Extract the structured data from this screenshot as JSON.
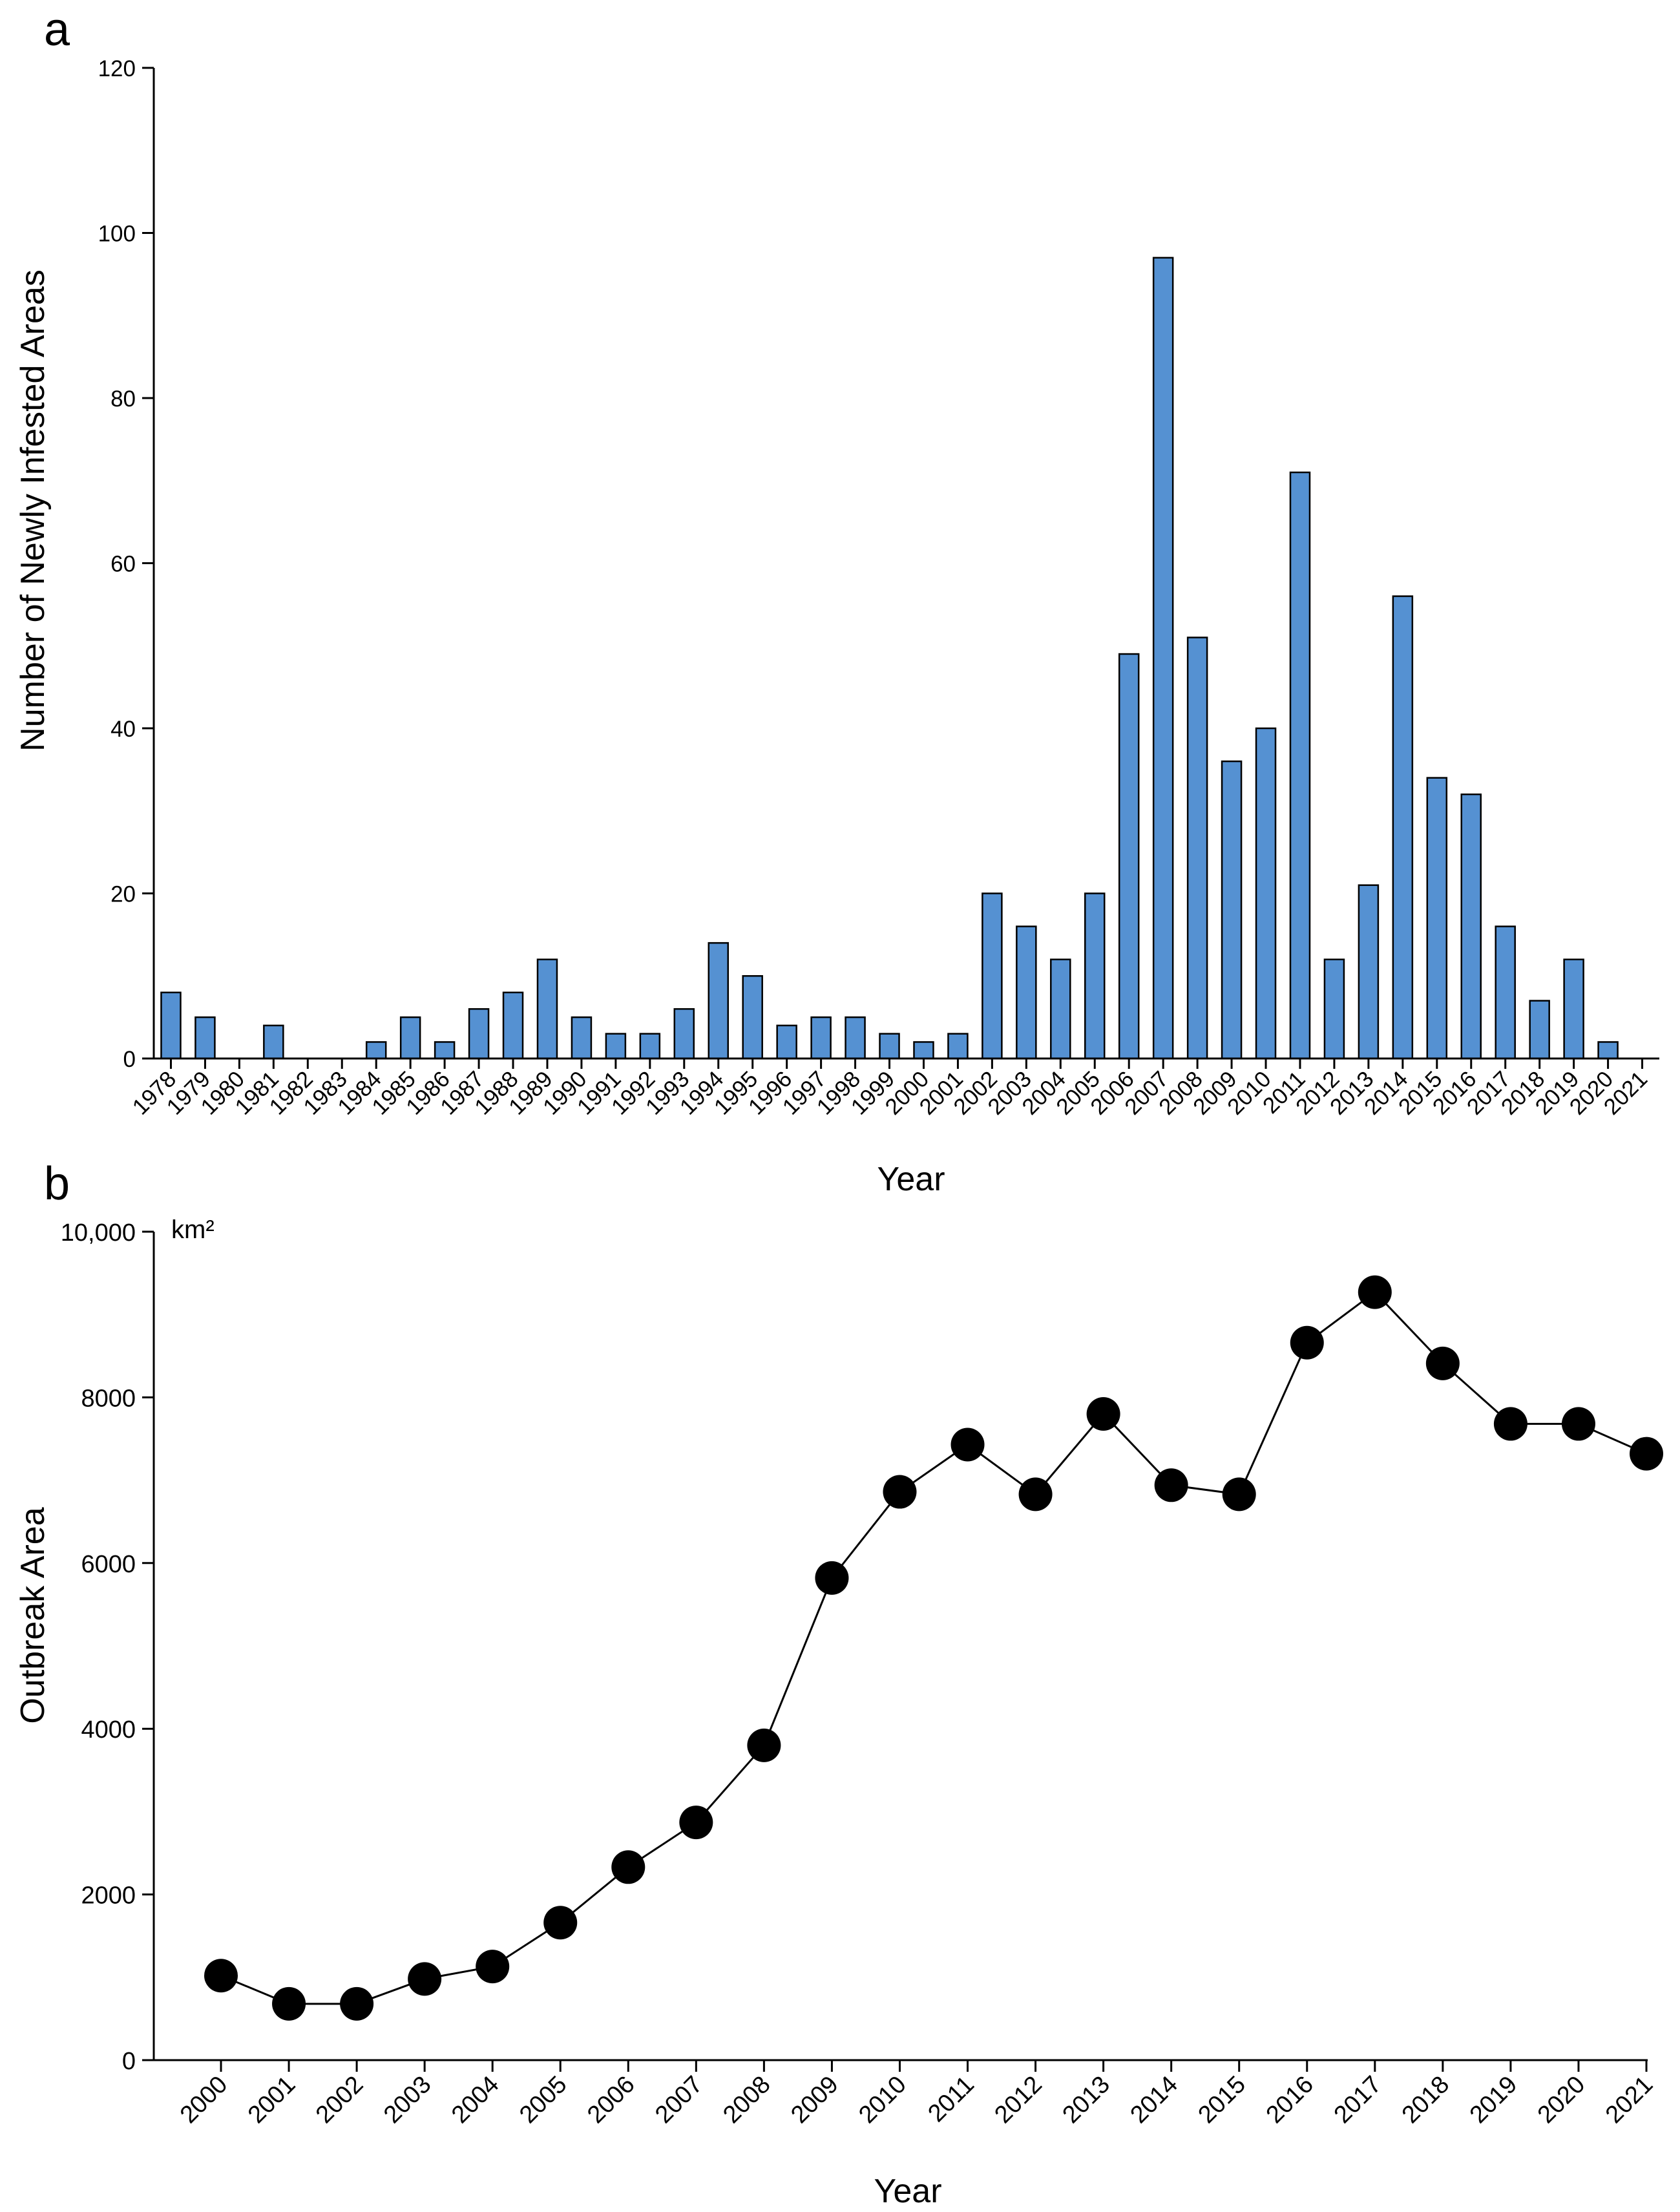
{
  "chart_data": [
    {
      "panel": "a",
      "type": "bar",
      "title": "",
      "xlabel": "Year",
      "ylabel": "Number of Newly Infested Areas",
      "ylim": [
        0,
        120
      ],
      "yticks": [
        0,
        20,
        40,
        60,
        80,
        100,
        120
      ],
      "bar_color": "#5591d2",
      "categories": [
        "1978",
        "1979",
        "1980",
        "1981",
        "1982",
        "1983",
        "1984",
        "1985",
        "1986",
        "1987",
        "1988",
        "1989",
        "1990",
        "1991",
        "1992",
        "1993",
        "1994",
        "1995",
        "1996",
        "1997",
        "1998",
        "1999",
        "2000",
        "2001",
        "2002",
        "2003",
        "2004",
        "2005",
        "2006",
        "2007",
        "2008",
        "2009",
        "2010",
        "2011",
        "2012",
        "2013",
        "2014",
        "2015",
        "2016",
        "2017",
        "2018",
        "2019",
        "2020",
        "2021"
      ],
      "values": [
        8,
        5,
        0,
        4,
        0,
        0,
        2,
        5,
        2,
        6,
        8,
        12,
        5,
        3,
        3,
        6,
        14,
        10,
        4,
        5,
        5,
        3,
        2,
        3,
        20,
        16,
        12,
        20,
        49,
        97,
        51,
        36,
        40,
        71,
        12,
        21,
        56,
        34,
        32,
        16,
        7,
        12,
        2,
        0
      ]
    },
    {
      "panel": "b",
      "type": "line",
      "title": "",
      "xlabel": "Year",
      "ylabel": "Outbreak Area",
      "unit": "km²",
      "ylim": [
        0,
        10000
      ],
      "yticks": [
        0,
        2000,
        4000,
        6000,
        8000,
        10000
      ],
      "ytick_labels": [
        "0",
        "2000",
        "4000",
        "6000",
        "8000",
        "10,000"
      ],
      "marker_color": "#000000",
      "x": [
        "2000",
        "2001",
        "2002",
        "2003",
        "2004",
        "2005",
        "2006",
        "2007",
        "2008",
        "2009",
        "2010",
        "2011",
        "2012",
        "2013",
        "2014",
        "2015",
        "2016",
        "2017",
        "2018",
        "2019",
        "2020",
        "2021"
      ],
      "values": [
        1020,
        680,
        680,
        980,
        1130,
        1660,
        2330,
        2870,
        3800,
        5820,
        6860,
        7430,
        6830,
        7800,
        6940,
        6830,
        8660,
        9270,
        8410,
        7680,
        7680,
        7320
      ]
    }
  ]
}
